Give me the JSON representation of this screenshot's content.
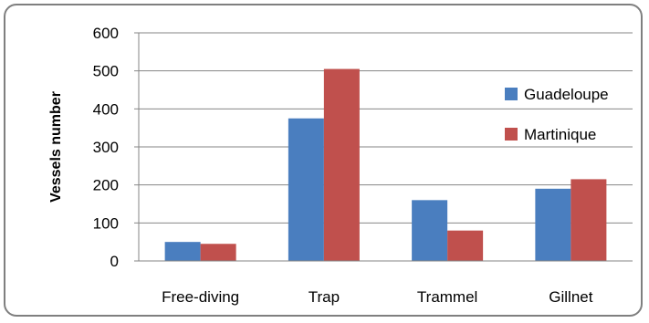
{
  "chart_data": {
    "type": "bar",
    "title": "",
    "xlabel": "",
    "ylabel": "Vessels number",
    "ylim": [
      0,
      600
    ],
    "yticks": [
      0,
      100,
      200,
      300,
      400,
      500,
      600
    ],
    "grid": true,
    "legend_position": "right",
    "categories": [
      "Free-diving",
      "Trap",
      "Trammel",
      "Gillnet"
    ],
    "series": [
      {
        "name": "Guadeloupe",
        "color": "#4a7ebf",
        "values": [
          50,
          375,
          160,
          190
        ]
      },
      {
        "name": "Martinique",
        "color": "#c0504d",
        "values": [
          45,
          505,
          80,
          215
        ]
      }
    ]
  }
}
